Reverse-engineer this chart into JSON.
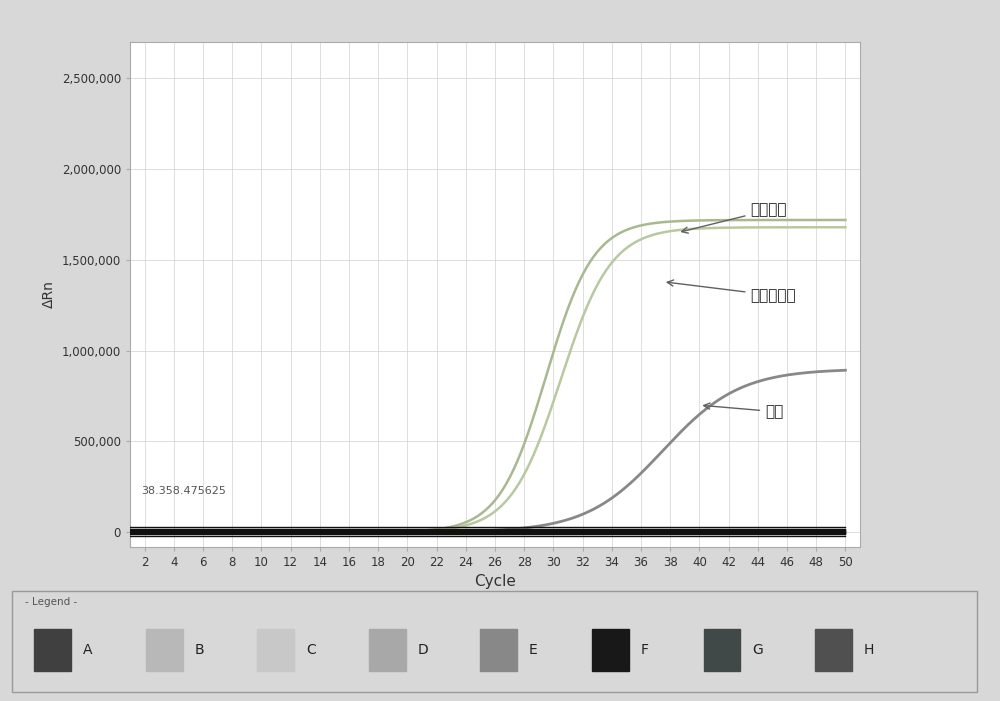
{
  "xlabel": "Cycle",
  "ylabel": "ΔRn",
  "xlim": [
    1,
    51
  ],
  "ylim": [
    -80000,
    2700000
  ],
  "yticks": [
    0,
    500000,
    1000000,
    1500000,
    2000000,
    2500000
  ],
  "ytick_labels": [
    "0",
    "500,000",
    "1,000,000",
    "1,500,000",
    "2,000,000",
    "2,500,000"
  ],
  "xticks": [
    2,
    4,
    6,
    8,
    10,
    12,
    14,
    16,
    18,
    20,
    22,
    24,
    26,
    28,
    30,
    32,
    34,
    36,
    38,
    40,
    42,
    44,
    46,
    48,
    50
  ],
  "outer_bg": "#d8d8d8",
  "plot_bg": "#ffffff",
  "grid_color": "#d0d0d0",
  "annotation_text": "38.358.475625",
  "label_guanyuan": "管圆线虫",
  "label_huazhi": "华支箌吸虫",
  "label_neibiao": "内标",
  "legend_title": "Legend",
  "legend_labels": [
    "A",
    "B",
    "C",
    "D",
    "E",
    "F",
    "G",
    "H"
  ],
  "legend_colors": [
    "#404040",
    "#b8b8b8",
    "#c8c8c8",
    "#a8a8a8",
    "#888888",
    "#181818",
    "#404848",
    "#505050"
  ],
  "curve1_color": "#a8b890",
  "curve2_color": "#b8c8a0",
  "curve3_color": "#888888",
  "baseline_color": "#101010"
}
